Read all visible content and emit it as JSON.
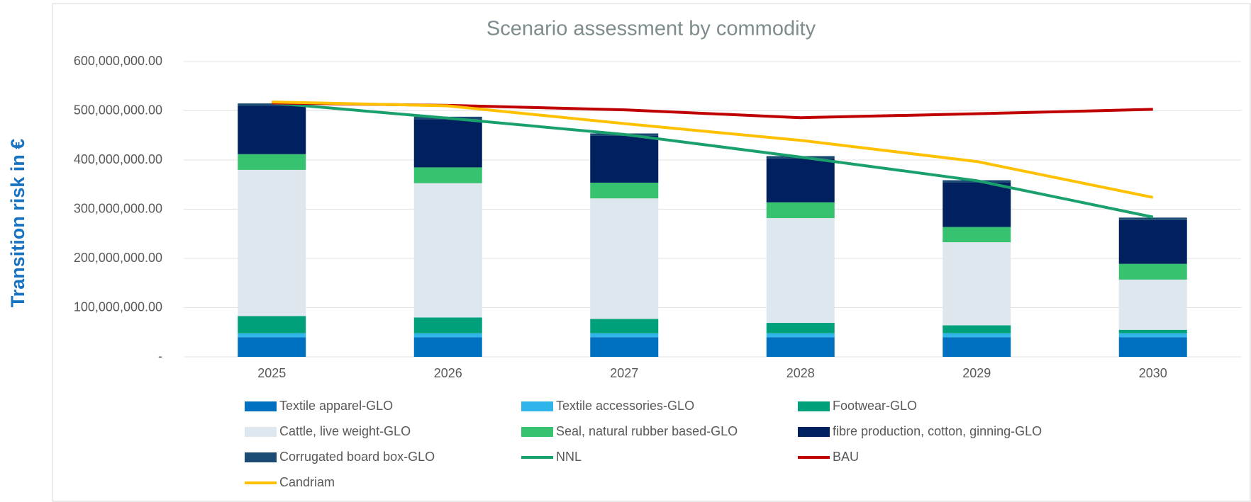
{
  "chart_data": {
    "type": "bar",
    "stacked": true,
    "title": "Scenario assessment by commodity",
    "y_label": "Transition risk in €",
    "categories": [
      "2025",
      "2026",
      "2027",
      "2028",
      "2029",
      "2030"
    ],
    "series": [
      {
        "name": "Textile apparel-GLO",
        "color": "#0070c0",
        "values": [
          40000000,
          40000000,
          40000000,
          40000000,
          40000000,
          40000000
        ]
      },
      {
        "name": "Textile accessories-GLO",
        "color": "#2fb5ea",
        "values": [
          8000000,
          8000000,
          8000000,
          8000000,
          8000000,
          8000000
        ]
      },
      {
        "name": "Footwear-GLO",
        "color": "#00a07a",
        "values": [
          35000000,
          32000000,
          29000000,
          21000000,
          16000000,
          7000000
        ]
      },
      {
        "name": "Cattle, live weight-GLO",
        "color": "#dee6ee",
        "values": [
          297000000,
          273000000,
          245000000,
          213000000,
          169000000,
          102000000
        ]
      },
      {
        "name": "Seal, natural rubber based-GLO",
        "color": "#36c26e",
        "values": [
          32000000,
          32000000,
          32000000,
          32000000,
          31000000,
          32000000
        ]
      },
      {
        "name": "fibre production, cotton, ginning-GLO",
        "color": "#002060",
        "values": [
          98000000,
          98000000,
          95000000,
          89000000,
          90000000,
          89000000
        ]
      },
      {
        "name": "Corrugated board box-GLO",
        "color": "#1b4a73",
        "values": [
          5000000,
          5000000,
          5000000,
          5000000,
          5000000,
          5000000
        ]
      },
      {
        "name": "NNL",
        "type": "line",
        "color": "#1aa06d",
        "values": [
          516000000,
          485000000,
          452000000,
          406000000,
          358000000,
          284000000
        ]
      },
      {
        "name": "BAU",
        "type": "line",
        "color": "#c00000",
        "values": [
          516000000,
          511000000,
          502000000,
          486000000,
          494000000,
          503000000
        ]
      },
      {
        "name": "Candriam",
        "type": "line",
        "color": "#ffc000",
        "values": [
          518000000,
          510000000,
          474000000,
          440000000,
          397000000,
          324000000
        ]
      }
    ],
    "ylim": [
      0,
      600000000
    ],
    "yticks": [
      {
        "value": 0,
        "label": "-"
      },
      {
        "value": 100000000,
        "label": "100,000,000.00"
      },
      {
        "value": 200000000,
        "label": "200,000,000.00"
      },
      {
        "value": 300000000,
        "label": "300,000,000.00"
      },
      {
        "value": 400000000,
        "label": "400,000,000.00"
      },
      {
        "value": 500000000,
        "label": "500,000,000.00"
      },
      {
        "value": 600000000,
        "label": "600,000,000.00"
      }
    ],
    "grid": true,
    "legend": "bottom"
  }
}
